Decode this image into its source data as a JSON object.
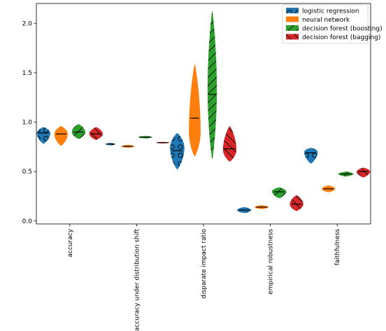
{
  "chart_data": {
    "type": "violin",
    "categories": [
      "accuracy",
      "accuracy under distribution shift",
      "disparate impact ratio",
      "empirical robustness",
      "faithfulness"
    ],
    "ylim": [
      -0.03,
      2.2
    ],
    "yticks": [
      "0.0",
      "0.5",
      "1.0",
      "1.5",
      "2.0"
    ],
    "ytick_values": [
      0.0,
      0.5,
      1.0,
      1.5,
      2.0
    ],
    "legend_position": "top-right",
    "series": [
      {
        "name": "logistic regression",
        "color": "#1f77b4",
        "hatch": "circles",
        "distributions": [
          {
            "min": 0.78,
            "max": 0.95,
            "median": 0.89,
            "mode": 0.89,
            "width": 0.8
          },
          {
            "min": 0.765,
            "max": 0.79,
            "median": 0.778,
            "mode": 0.778,
            "width": 0.6
          },
          {
            "min": 0.52,
            "max": 0.89,
            "median": 0.71,
            "mode": 0.74,
            "width": 0.85
          },
          {
            "min": 0.08,
            "max": 0.14,
            "median": 0.11,
            "mode": 0.11,
            "width": 0.85
          },
          {
            "min": 0.58,
            "max": 0.74,
            "median": 0.69,
            "mode": 0.7,
            "width": 0.8
          }
        ]
      },
      {
        "name": "neural network",
        "color": "#ff7f0e",
        "hatch": "none",
        "distributions": [
          {
            "min": 0.76,
            "max": 0.96,
            "median": 0.88,
            "mode": 0.88,
            "width": 0.8
          },
          {
            "min": 0.74,
            "max": 0.77,
            "median": 0.755,
            "mode": 0.755,
            "width": 0.8
          },
          {
            "min": 0.65,
            "max": 1.59,
            "median": 1.04,
            "mode": 0.9,
            "width": 0.7
          },
          {
            "min": 0.12,
            "max": 0.16,
            "median": 0.14,
            "mode": 0.14,
            "width": 0.85
          },
          {
            "min": 0.29,
            "max": 0.36,
            "median": 0.325,
            "mode": 0.325,
            "width": 0.8
          }
        ]
      },
      {
        "name": "decision forest (boosting)",
        "color": "#2ca02c",
        "hatch": "diagonal",
        "distributions": [
          {
            "min": 0.83,
            "max": 0.98,
            "median": 0.9,
            "mode": 0.9,
            "width": 0.8
          },
          {
            "min": 0.835,
            "max": 0.86,
            "median": 0.848,
            "mode": 0.848,
            "width": 0.85
          },
          {
            "min": 0.62,
            "max": 2.13,
            "median": 1.28,
            "mode": 1.32,
            "width": 0.55
          },
          {
            "min": 0.23,
            "max": 0.34,
            "median": 0.295,
            "mode": 0.3,
            "width": 0.85
          },
          {
            "min": 0.45,
            "max": 0.5,
            "median": 0.475,
            "mode": 0.475,
            "width": 0.9
          }
        ]
      },
      {
        "name": "decision forest (bagging)",
        "color": "#d62728",
        "hatch": "backslash",
        "distributions": [
          {
            "min": 0.82,
            "max": 0.95,
            "median": 0.88,
            "mode": 0.88,
            "width": 0.8
          },
          {
            "min": 0.785,
            "max": 0.8,
            "median": 0.792,
            "mode": 0.792,
            "width": 0.85
          },
          {
            "min": 0.6,
            "max": 0.96,
            "median": 0.73,
            "mode": 0.72,
            "width": 0.8
          },
          {
            "min": 0.1,
            "max": 0.26,
            "median": 0.17,
            "mode": 0.17,
            "width": 0.8
          },
          {
            "min": 0.44,
            "max": 0.54,
            "median": 0.5,
            "mode": 0.5,
            "width": 0.8
          }
        ]
      }
    ]
  }
}
